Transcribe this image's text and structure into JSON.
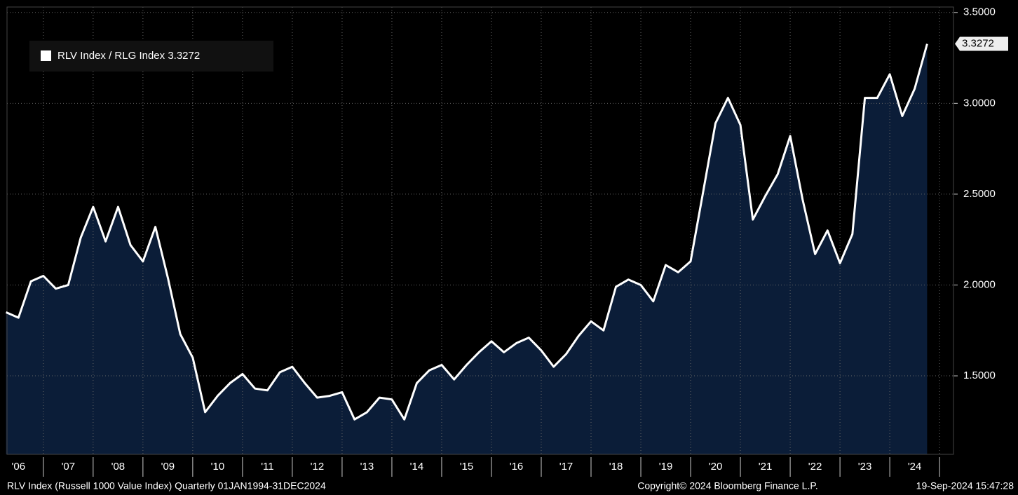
{
  "chart_data": {
    "type": "area",
    "series": [
      {
        "name": "RLV Index / RLG Index",
        "color": "#ffffff",
        "fill": "#0b1d38",
        "x": [
          2006.25,
          2006.5,
          2006.75,
          2007,
          2007.25,
          2007.5,
          2007.75,
          2008,
          2008.25,
          2008.5,
          2008.75,
          2009,
          2009.25,
          2009.5,
          2009.75,
          2010,
          2010.25,
          2010.5,
          2010.75,
          2011,
          2011.25,
          2011.5,
          2011.75,
          2012,
          2012.25,
          2012.5,
          2012.75,
          2013,
          2013.25,
          2013.5,
          2013.75,
          2014,
          2014.25,
          2014.5,
          2014.75,
          2015,
          2015.25,
          2015.5,
          2015.75,
          2016,
          2016.25,
          2016.5,
          2016.75,
          2017,
          2017.25,
          2017.5,
          2017.75,
          2018,
          2018.25,
          2018.5,
          2018.75,
          2019,
          2019.25,
          2019.5,
          2019.75,
          2020,
          2020.25,
          2020.5,
          2020.75,
          2021,
          2021.25,
          2021.5,
          2021.75,
          2022,
          2022.25,
          2022.5,
          2022.75,
          2023,
          2023.25,
          2023.5,
          2023.75,
          2024,
          2024.25,
          2024.5,
          2024.75
        ],
        "values": [
          1.85,
          1.82,
          2.02,
          2.05,
          1.98,
          2.0,
          2.26,
          2.43,
          2.24,
          2.43,
          2.22,
          2.13,
          2.32,
          2.04,
          1.73,
          1.6,
          1.3,
          1.39,
          1.46,
          1.51,
          1.43,
          1.42,
          1.52,
          1.55,
          1.46,
          1.38,
          1.39,
          1.41,
          1.26,
          1.3,
          1.38,
          1.37,
          1.26,
          1.46,
          1.53,
          1.56,
          1.48,
          1.56,
          1.63,
          1.69,
          1.63,
          1.68,
          1.71,
          1.64,
          1.55,
          1.62,
          1.72,
          1.8,
          1.75,
          1.99,
          2.03,
          2.0,
          1.91,
          2.11,
          2.07,
          2.13,
          2.51,
          2.89,
          3.03,
          2.88,
          2.36,
          2.49,
          2.61,
          2.82,
          2.47,
          2.17,
          2.3,
          2.12,
          2.28,
          3.03,
          3.03,
          3.16,
          2.93,
          3.08,
          3.3272
        ]
      }
    ],
    "xlim": [
      2006.27,
      2025.28
    ],
    "xticks": [
      {
        "value": 2006.5,
        "label": "'06"
      },
      {
        "value": 2007.5,
        "label": "'07"
      },
      {
        "value": 2008.5,
        "label": "'08"
      },
      {
        "value": 2009.5,
        "label": "'09"
      },
      {
        "value": 2010.5,
        "label": "'10"
      },
      {
        "value": 2011.5,
        "label": "'11"
      },
      {
        "value": 2012.5,
        "label": "'12"
      },
      {
        "value": 2013.5,
        "label": "'13"
      },
      {
        "value": 2014.5,
        "label": "'14"
      },
      {
        "value": 2015.5,
        "label": "'15"
      },
      {
        "value": 2016.5,
        "label": "'16"
      },
      {
        "value": 2017.5,
        "label": "'17"
      },
      {
        "value": 2018.5,
        "label": "'18"
      },
      {
        "value": 2019.5,
        "label": "'19"
      },
      {
        "value": 2020.5,
        "label": "'20"
      },
      {
        "value": 2021.5,
        "label": "'21"
      },
      {
        "value": 2022.5,
        "label": "'22"
      },
      {
        "value": 2023.5,
        "label": "'23"
      },
      {
        "value": 2024.5,
        "label": "'24"
      }
    ],
    "ylim": [
      1.068,
      3.53
    ],
    "yticks": [
      {
        "value": 1.5,
        "label": "1.5000"
      },
      {
        "value": 2.0,
        "label": "2.0000"
      },
      {
        "value": 2.5,
        "label": "2.5000"
      },
      {
        "value": 3.0,
        "label": "3.0000"
      },
      {
        "value": 3.5,
        "label": "3.5000"
      }
    ],
    "grid": true,
    "footer": [
      "RLV Index (Russell 1000 Value Index)  Quarterly 01JAN1994-31DEC2024",
      "Copyright© 2024 Bloomberg Finance L.P.",
      "19-Sep-2024 15:47:28"
    ]
  }
}
